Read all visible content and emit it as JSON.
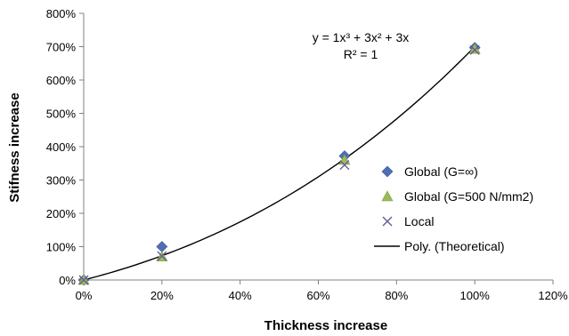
{
  "chart_data": {
    "type": "scatter",
    "title": "",
    "xlabel": "Thickness increase",
    "ylabel": "Stifness increase",
    "xlim": [
      0,
      1.2
    ],
    "ylim": [
      0,
      8
    ],
    "x_ticks": [
      0,
      0.2,
      0.4,
      0.6,
      0.8,
      1.0,
      1.2
    ],
    "x_tick_labels": [
      "0%",
      "20%",
      "40%",
      "60%",
      "80%",
      "100%",
      "120%"
    ],
    "y_ticks": [
      0,
      1,
      2,
      3,
      4,
      5,
      6,
      7,
      8
    ],
    "y_tick_labels": [
      "0%",
      "100%",
      "200%",
      "300%",
      "400%",
      "500%",
      "600%",
      "700%",
      "800%"
    ],
    "grid": false,
    "legend_position": "right",
    "series": [
      {
        "name": "Global (G=∞)",
        "marker": "diamond",
        "color": "#4F6FB5",
        "x": [
          0,
          0.2,
          0.667,
          1.0
        ],
        "y": [
          0.0,
          1.0,
          3.72,
          6.97
        ]
      },
      {
        "name": "Global (G=500 N/mm2)",
        "marker": "triangle",
        "color": "#9BBB59",
        "x": [
          0,
          0.2,
          0.667,
          1.0
        ],
        "y": [
          0.0,
          0.7,
          3.6,
          6.93
        ]
      },
      {
        "name": "Local",
        "marker": "x",
        "color": "#6B5A96",
        "x": [
          0,
          0.2,
          0.667,
          1.0
        ],
        "y": [
          0.0,
          0.72,
          3.45,
          6.9
        ]
      }
    ],
    "trendline": {
      "name": "Poly. (Theoretical)",
      "type": "polynomial",
      "coefficients": {
        "a3": 1,
        "a2": 3,
        "a1": 3,
        "a0": 0
      },
      "x_range": [
        0,
        1.0
      ],
      "color": "#000000",
      "equation_label": "y = 1x³ + 3x² + 3x",
      "r2_label": "R² = 1"
    }
  }
}
